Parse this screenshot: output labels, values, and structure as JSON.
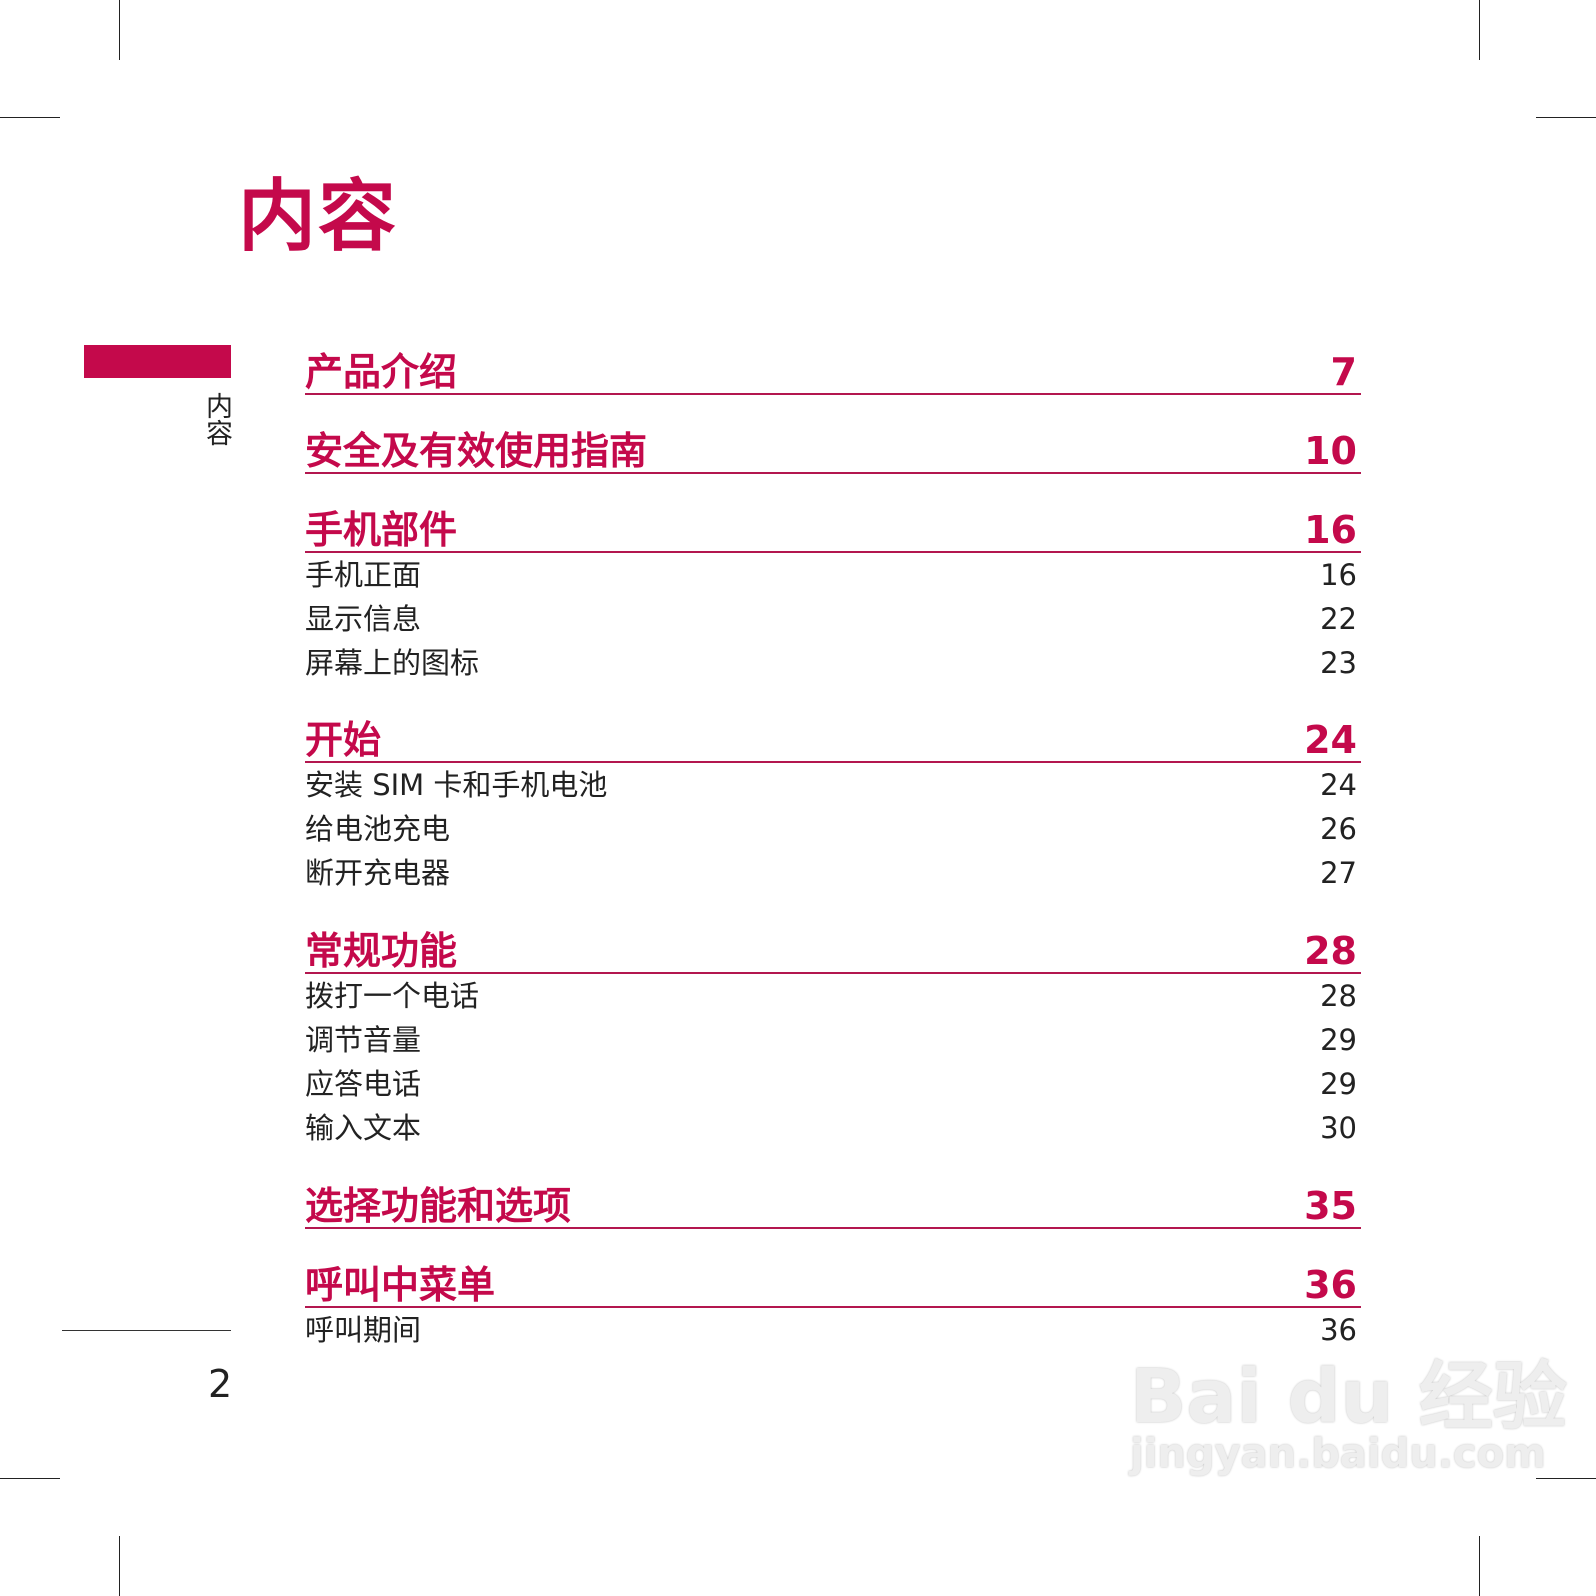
{
  "page_title": "内容",
  "side_tab_label": "内容",
  "page_number": "2",
  "accent_color": "#c4094b",
  "sections": [
    {
      "title": "产品介绍",
      "page": "7",
      "items": []
    },
    {
      "title": "安全及有效使用指南",
      "page": "10",
      "items": []
    },
    {
      "title": "手机部件",
      "page": "16",
      "items": [
        {
          "label": "手机正面",
          "page": "16"
        },
        {
          "label": "显示信息",
          "page": "22"
        },
        {
          "label": "屏幕上的图标",
          "page": "23"
        }
      ]
    },
    {
      "title": "开始",
      "page": "24",
      "items": [
        {
          "label": "安装 SIM 卡和手机电池",
          "page": "24"
        },
        {
          "label": "给电池充电",
          "page": "26"
        },
        {
          "label": "断开充电器",
          "page": "27"
        }
      ]
    },
    {
      "title": "常规功能",
      "page": "28",
      "items": [
        {
          "label": "拨打一个电话",
          "page": "28"
        },
        {
          "label": "调节音量",
          "page": "29"
        },
        {
          "label": "应答电话",
          "page": "29"
        },
        {
          "label": "输入文本",
          "page": "30"
        }
      ]
    },
    {
      "title": "选择功能和选项",
      "page": "35",
      "items": []
    },
    {
      "title": "呼叫中菜单",
      "page": "36",
      "items": [
        {
          "label": "呼叫期间",
          "page": "36"
        }
      ]
    }
  ],
  "watermark": {
    "logo": "Bai du 经验",
    "url": "jingyan.baidu.com"
  }
}
